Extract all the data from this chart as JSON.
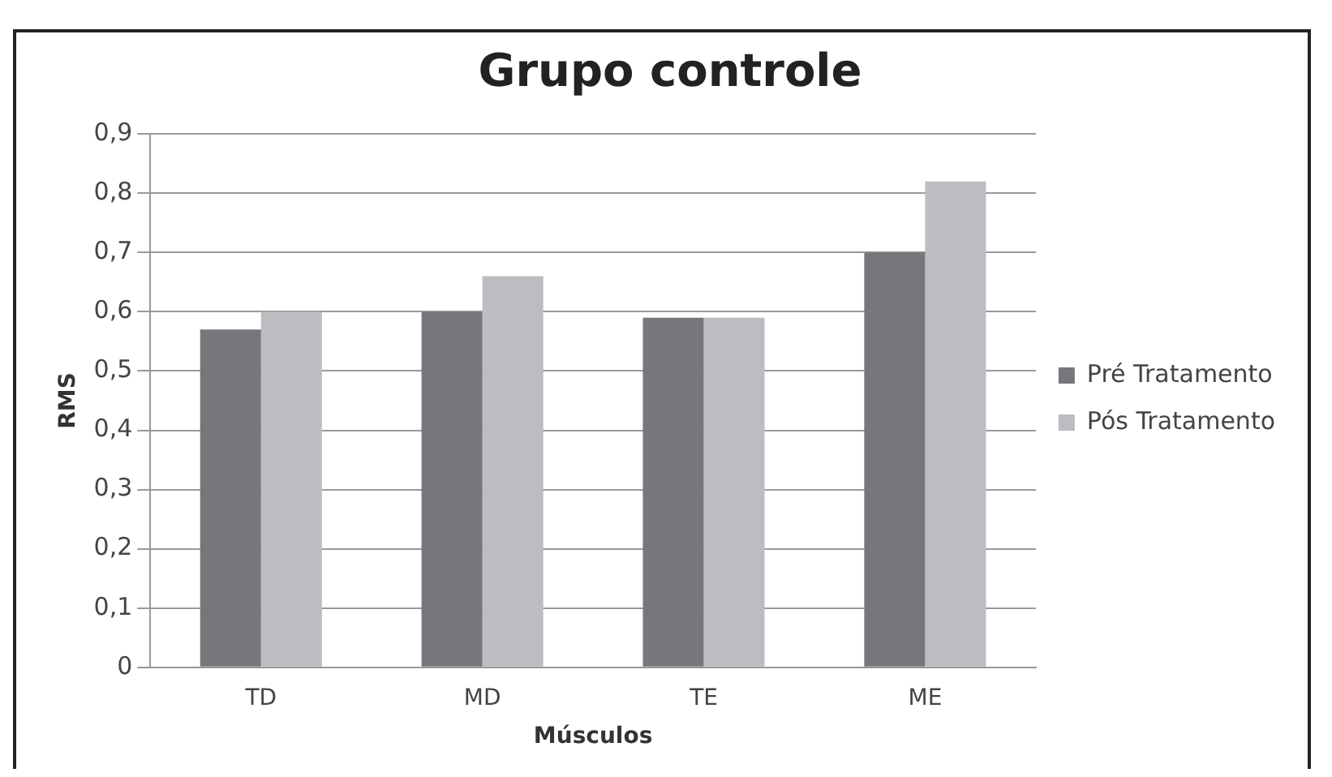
{
  "chart_data": {
    "type": "bar",
    "title": "Grupo controle",
    "xlabel": "Músculos",
    "ylabel": "RMS",
    "categories": [
      "TD",
      "MD",
      "TE",
      "ME"
    ],
    "series": [
      {
        "name": "Pré Tratamento",
        "color": "#76777b",
        "values": [
          0.57,
          0.6,
          0.59,
          0.7
        ]
      },
      {
        "name": "Pós Tratamento",
        "color": "#bcbdc0",
        "values": [
          0.6,
          0.66,
          0.59,
          0.82
        ]
      }
    ],
    "ylim": [
      0,
      0.9
    ],
    "yticks": [
      {
        "value": 0,
        "label": "0"
      },
      {
        "value": 0.1,
        "label": "0,1"
      },
      {
        "value": 0.2,
        "label": "0,2"
      },
      {
        "value": 0.3,
        "label": "0,3"
      },
      {
        "value": 0.4,
        "label": "0,4"
      },
      {
        "value": 0.5,
        "label": "0,5"
      },
      {
        "value": 0.6,
        "label": "0,6"
      },
      {
        "value": 0.7,
        "label": "0,7"
      },
      {
        "value": 0.8,
        "label": "0,8"
      },
      {
        "value": 0.9,
        "label": "0,9"
      }
    ],
    "grid": "y",
    "legend": "right"
  }
}
